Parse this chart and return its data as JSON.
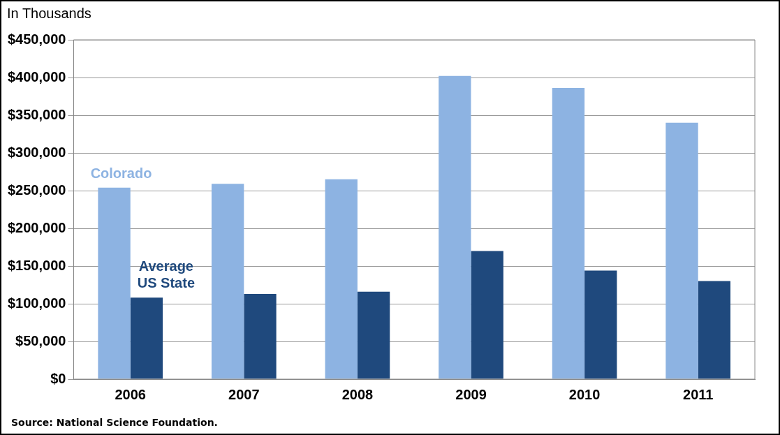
{
  "chart_data": {
    "type": "bar",
    "ylabel": "In Thousands",
    "categories": [
      "2006",
      "2007",
      "2008",
      "2009",
      "2010",
      "2011"
    ],
    "series": [
      {
        "name": "Colorado",
        "color": "#8db3e2",
        "values": [
          254000,
          259000,
          265000,
          402000,
          386000,
          340000
        ]
      },
      {
        "name": "Average US State",
        "color": "#1f497d",
        "values": [
          108000,
          113000,
          116000,
          170000,
          144000,
          130000
        ]
      }
    ],
    "ylim": [
      0,
      450000
    ],
    "yticks": [
      {
        "value": 0,
        "label": "$0"
      },
      {
        "value": 50000,
        "label": "$50,000"
      },
      {
        "value": 100000,
        "label": "$100,000"
      },
      {
        "value": 150000,
        "label": "$150,000"
      },
      {
        "value": 200000,
        "label": "$200,000"
      },
      {
        "value": 250000,
        "label": "$250,000"
      },
      {
        "value": 300000,
        "label": "$300,000"
      },
      {
        "value": 350000,
        "label": "$350,000"
      },
      {
        "value": 400000,
        "label": "$400,000"
      },
      {
        "value": 450000,
        "label": "$450,000"
      }
    ],
    "grid": "y",
    "legend": false,
    "annotations": [
      "Source: National Science Foundation."
    ]
  }
}
